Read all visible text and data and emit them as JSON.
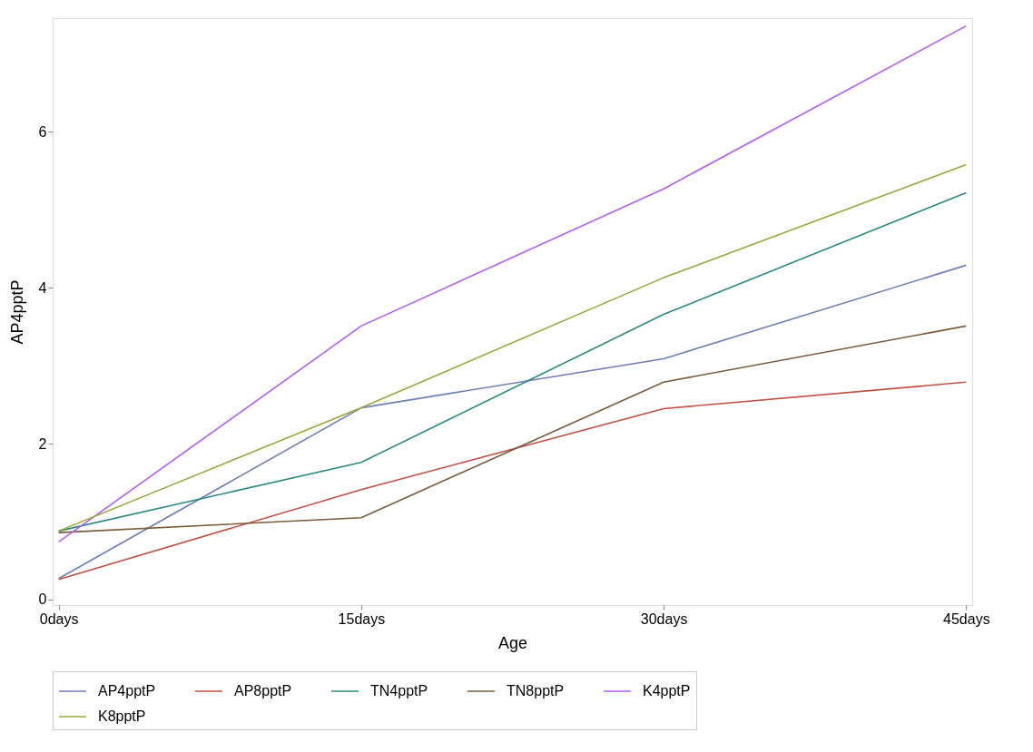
{
  "chart_data": {
    "type": "line",
    "xlabel": "Age",
    "ylabel": "AP4pptP",
    "categories": [
      "0days",
      "15days",
      "30days",
      "45days"
    ],
    "series": [
      {
        "name": "AP4pptP",
        "color": "#6f7eb7",
        "values": [
          0.27,
          2.46,
          3.09,
          4.29
        ]
      },
      {
        "name": "AP8pptP",
        "color": "#c05040",
        "values": [
          0.26,
          1.41,
          2.45,
          2.79
        ]
      },
      {
        "name": "TN4pptP",
        "color": "#2a8a80",
        "values": [
          0.88,
          1.76,
          3.66,
          5.22
        ]
      },
      {
        "name": "TN8pptP",
        "color": "#7a5a3a",
        "values": [
          0.86,
          1.05,
          2.79,
          3.51
        ]
      },
      {
        "name": "K4pptP",
        "color": "#b35ef5",
        "values": [
          0.74,
          3.51,
          5.27,
          7.36
        ]
      },
      {
        "name": "K8pptP",
        "color": "#9aa83e",
        "values": [
          0.88,
          2.46,
          4.13,
          5.58
        ]
      }
    ],
    "ylim": [
      -0.07,
      7.46
    ],
    "yticks": [
      0,
      2,
      4,
      6
    ],
    "grid": false,
    "legend": "bottom",
    "marker": "none",
    "line_style": "solid"
  }
}
